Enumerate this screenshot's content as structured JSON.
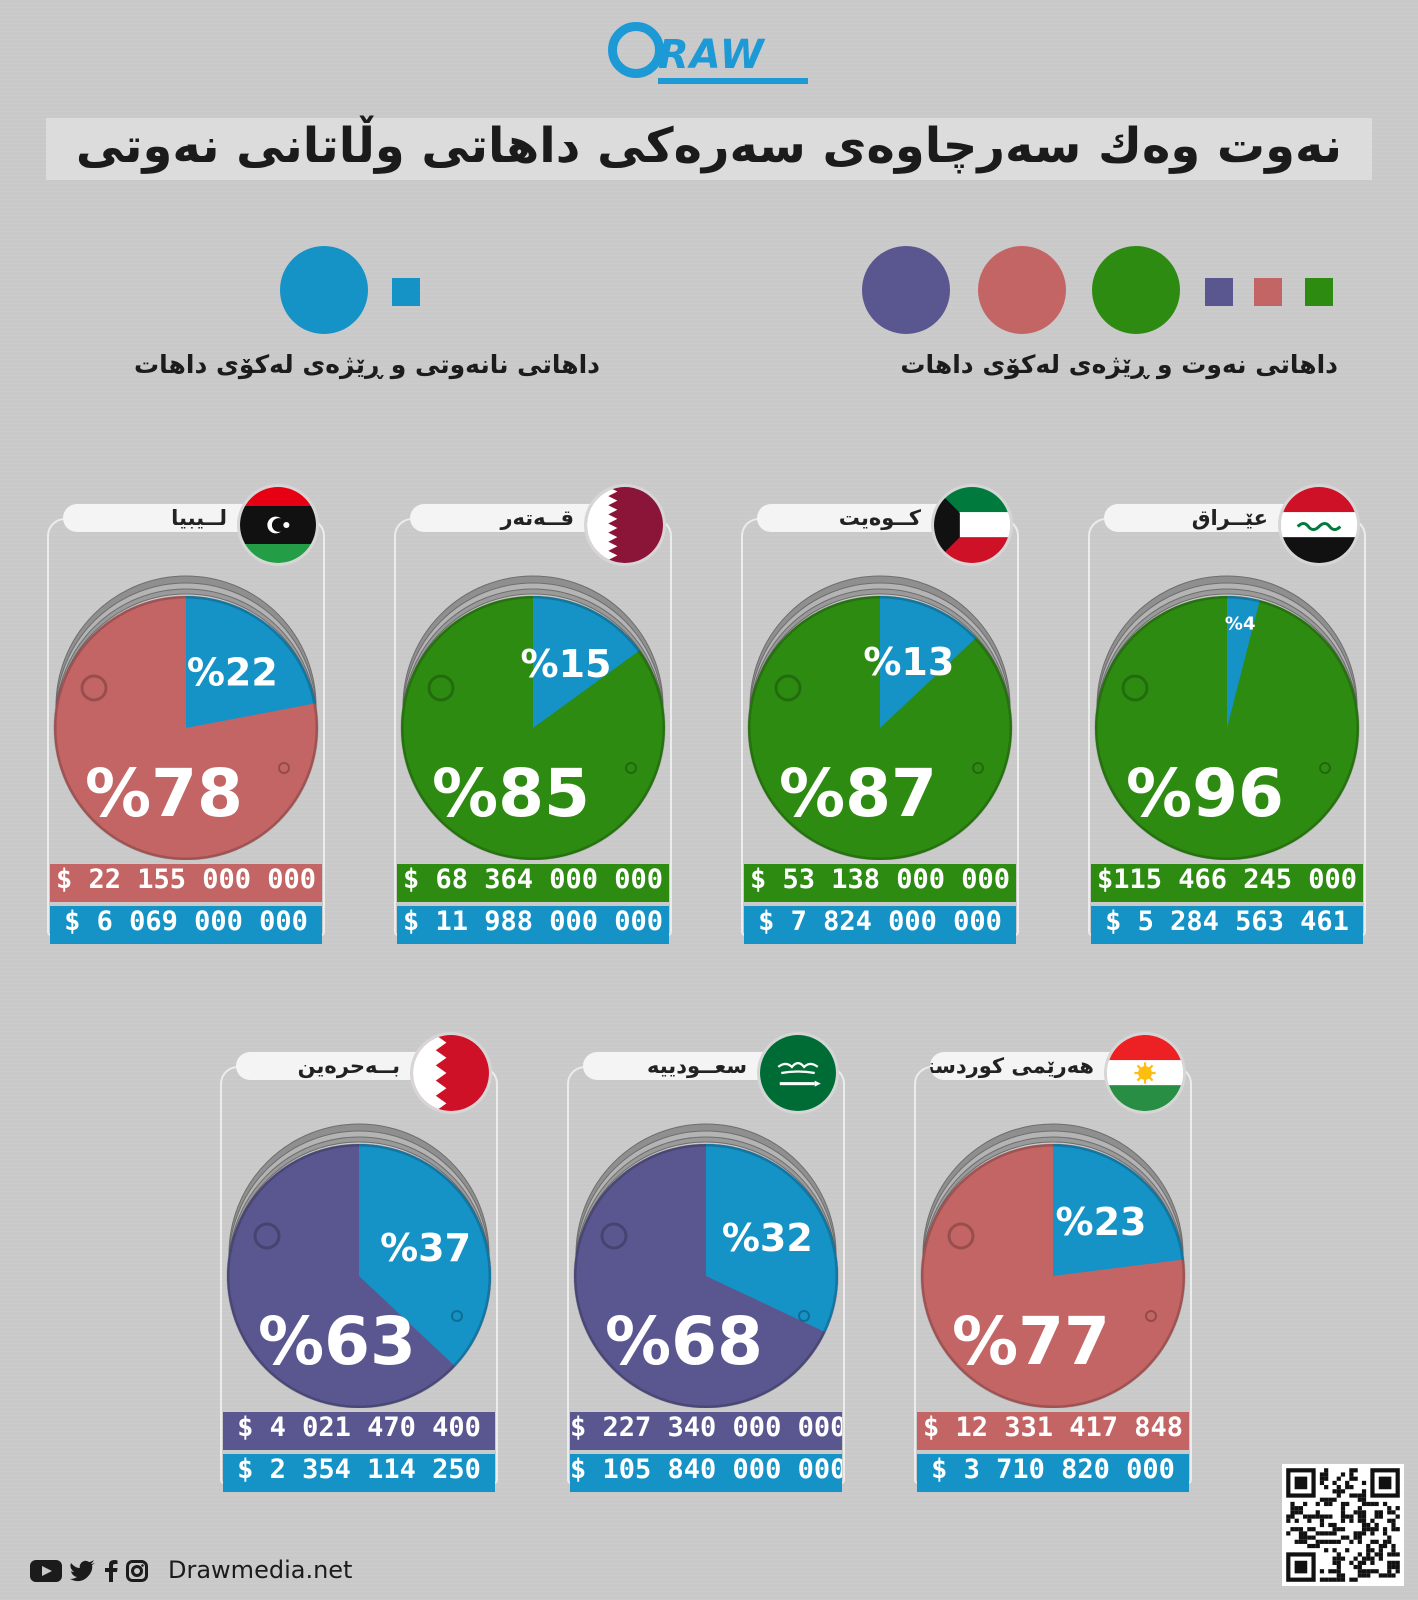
{
  "brand": {
    "name": "RAW",
    "website": "Drawmedia.net"
  },
  "title": "نەوت وەك سەرچاوەی سەرەكی داهاتی وڵاتانی نەوتی",
  "legend": {
    "oil_label": "داهاتی نەوت و ڕێژەی لەكۆی داهات",
    "nonoil_label": "داهاتی نانەوتی و ڕێژەی لەكۆی داهات"
  },
  "colors": {
    "green": "#2e8b12",
    "red": "#c46565",
    "purple": "#5a5790",
    "blue": "#1592c6",
    "background": "#c9c9c9"
  },
  "chart_data": {
    "type": "pie",
    "title": "نەوت وەك سەرچاوەی سەرەكی داهاتی وڵاتانی نەوتی",
    "series_names": [
      "داهاتی نەوت و ڕێژەی لەكۆی داهات",
      "داهاتی نانەوتی و ڕێژەی لەكۆی داهات"
    ],
    "countries": [
      {
        "id": "libya",
        "name": "لــيبيا",
        "color": "red",
        "oil_pct": 78,
        "nonoil_pct": 22,
        "oil_pct_label": "%78",
        "nonoil_pct_label": "%22",
        "oil_revenue": "$ 22 155 000 000",
        "nonoil_revenue": "$ 6 069 000 000"
      },
      {
        "id": "qatar",
        "name": "قــەتەر",
        "color": "green",
        "oil_pct": 85,
        "nonoil_pct": 15,
        "oil_pct_label": "%85",
        "nonoil_pct_label": "%15",
        "oil_revenue": "$ 68 364 000 000",
        "nonoil_revenue": "$ 11 988 000 000"
      },
      {
        "id": "kuwait",
        "name": "كــوەيت",
        "color": "green",
        "oil_pct": 87,
        "nonoil_pct": 13,
        "oil_pct_label": "%87",
        "nonoil_pct_label": "%13",
        "oil_revenue": "$ 53 138 000 000",
        "nonoil_revenue": "$ 7 824 000 000"
      },
      {
        "id": "iraq",
        "name": "عێــراق",
        "color": "green",
        "oil_pct": 96,
        "nonoil_pct": 4,
        "oil_pct_label": "%96",
        "nonoil_pct_label": "%4",
        "oil_revenue": "$115 466 245 000",
        "nonoil_revenue": "$ 5 284 563 461"
      },
      {
        "id": "bahrain",
        "name": "بــەحرەین",
        "color": "purple",
        "oil_pct": 63,
        "nonoil_pct": 37,
        "oil_pct_label": "%63",
        "nonoil_pct_label": "%37",
        "oil_revenue": "$ 4 021 470 400",
        "nonoil_revenue": "$ 2 354 114 250"
      },
      {
        "id": "saudi",
        "name": "سعــوديیە",
        "color": "purple",
        "oil_pct": 68,
        "nonoil_pct": 32,
        "oil_pct_label": "%68",
        "nonoil_pct_label": "%32",
        "oil_revenue": "$ 227 340 000 000",
        "nonoil_revenue": "$ 105 840 000 000"
      },
      {
        "id": "kurdistan",
        "name": "هەرێمی كوردستان",
        "color": "red",
        "oil_pct": 77,
        "nonoil_pct": 23,
        "oil_pct_label": "%77",
        "nonoil_pct_label": "%23",
        "oil_revenue": "$ 12 331 417 848",
        "nonoil_revenue": "$ 3 710 820 000"
      }
    ]
  }
}
